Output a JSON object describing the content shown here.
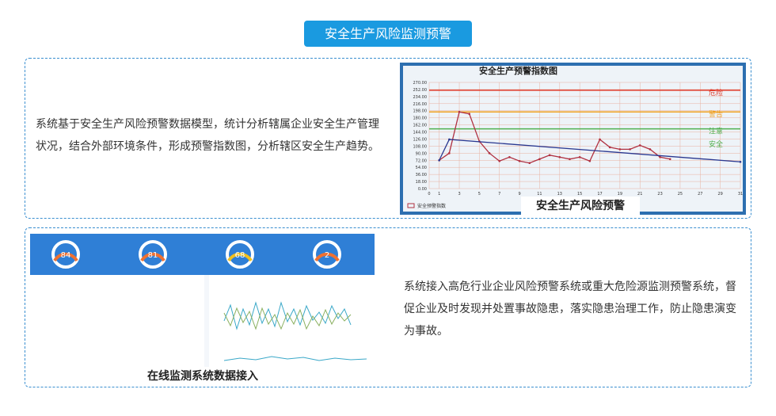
{
  "header": {
    "title": "安全生产风险监测预警"
  },
  "section1": {
    "text": "系统基于安全生产风险预警数据模型，统计分析辖属企业安全生产管理状况，结合外部环境条件，形成预警指数图，分析辖区安全生产趋势。",
    "caption": "安全生产风险预警",
    "chart_data": {
      "type": "line",
      "title": "安全生产预警指数图",
      "xlim": [
        0,
        31
      ],
      "xticks": [
        0,
        1,
        3,
        5,
        7,
        9,
        11,
        13,
        15,
        17,
        19,
        21,
        23,
        25,
        27,
        29,
        31
      ],
      "ylim": [
        0,
        270
      ],
      "yticks": [
        {
          "value": 0,
          "label": "0.00"
        },
        {
          "value": 18,
          "label": "18.00"
        },
        {
          "value": 36,
          "label": "36.00"
        },
        {
          "value": 54,
          "label": "54.00"
        },
        {
          "value": 72,
          "label": "72.00"
        },
        {
          "value": 90,
          "label": "90.00"
        },
        {
          "value": 108,
          "label": "108.00"
        },
        {
          "value": 126,
          "label": "126.00"
        },
        {
          "value": 144,
          "label": "144.00"
        },
        {
          "value": 162,
          "label": "162.00"
        },
        {
          "value": 180,
          "label": "180.00"
        },
        {
          "value": 198,
          "label": "198.00"
        },
        {
          "value": 216,
          "label": "216.00"
        },
        {
          "value": 234,
          "label": "234.00"
        },
        {
          "value": 252,
          "label": "252.00"
        },
        {
          "value": 270,
          "label": "270.00"
        }
      ],
      "grid": true,
      "levels": [
        {
          "name": "危险",
          "value": 250,
          "color": "#e03a2a"
        },
        {
          "name": "警告",
          "value": 195,
          "color": "#f0a020"
        },
        {
          "name": "注意",
          "value": 152,
          "color": "#50b050"
        },
        {
          "name": "安全",
          "value": 115,
          "color": "#50b050"
        }
      ],
      "series": [
        {
          "name": "安全预警指数",
          "color": "#b03040",
          "x": [
            1,
            2,
            3,
            4,
            5,
            6,
            7,
            8,
            9,
            10,
            11,
            12,
            13,
            14,
            15,
            16,
            17,
            18,
            19,
            20,
            21,
            22,
            23,
            24
          ],
          "values": [
            72,
            90,
            195,
            190,
            120,
            90,
            70,
            80,
            70,
            65,
            75,
            85,
            80,
            75,
            80,
            70,
            125,
            105,
            100,
            100,
            110,
            100,
            80,
            75
          ]
        },
        {
          "name": null,
          "color": "#2a3890",
          "x": [
            1,
            2,
            31
          ],
          "values": [
            72,
            125,
            68
          ]
        }
      ]
    }
  },
  "section2": {
    "text": "系统接入高危行业企业风险预警系统或重大危险源监测预警系统，督促企业及时发现并处置事故隐患，落实隐患治理工作，防止隐患演变为事故。",
    "caption": "在线监测系统数据接入",
    "gauges": [
      84,
      81,
      68,
      2
    ]
  }
}
